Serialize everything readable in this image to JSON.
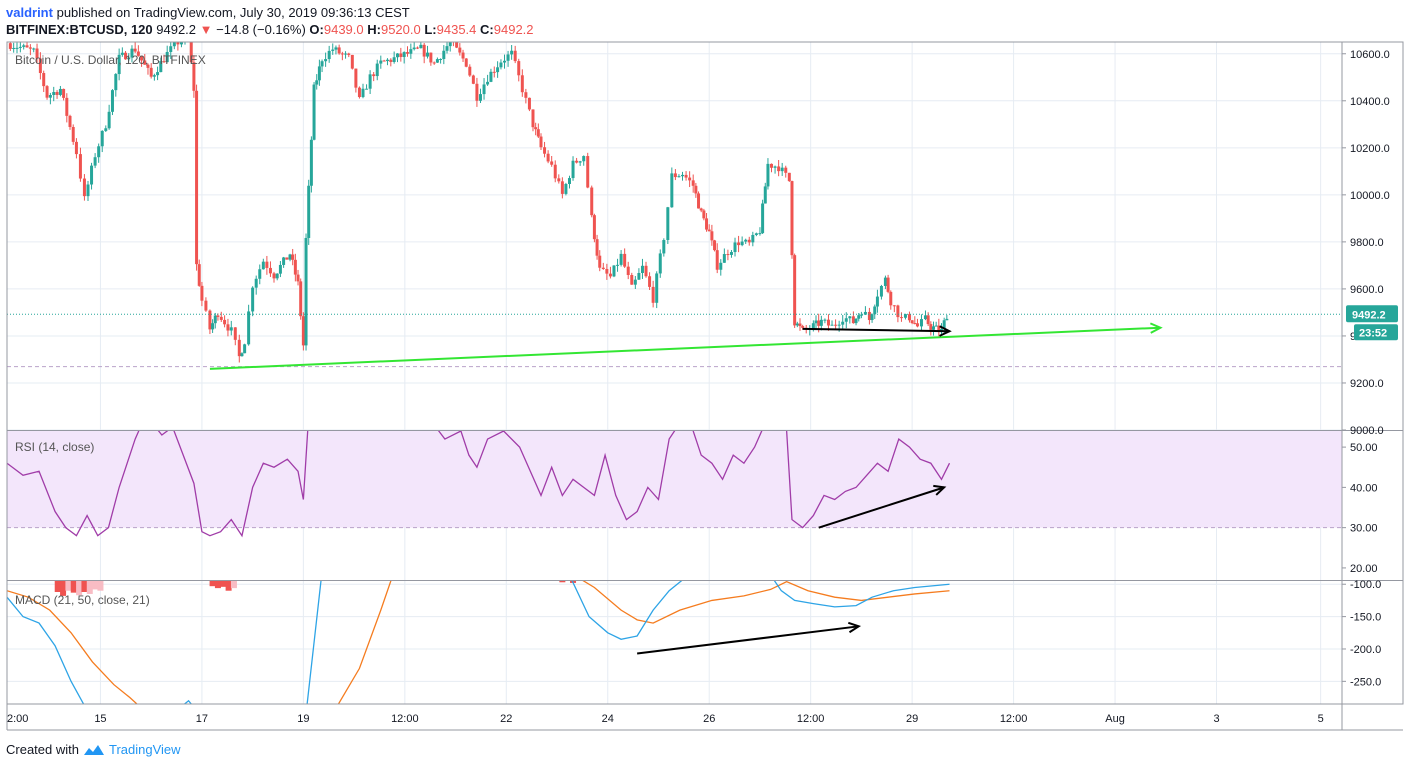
{
  "header": {
    "author": "valdrint",
    "published_text": "published on TradingView.com, July 30, 2019 09:36:13 CEST",
    "symbol": "BITFINEX:BTCUSD, 120",
    "last": "9492.2",
    "change_arrow": "▼",
    "change": "−14.8 (−0.16%)",
    "o_label": "O:",
    "o_value": "9439.0",
    "h_label": "H:",
    "h_value": "9520.0",
    "l_label": "L:",
    "l_value": "9435.4",
    "c_label": "C:",
    "c_value": "9492.2"
  },
  "footer": {
    "created_with": "Created with",
    "brand": "TradingView"
  },
  "colors": {
    "up": "#26a69a",
    "down": "#ef5350",
    "grid": "#e6ecf3",
    "trendline": "#33e633",
    "rsi": "#a03ca8",
    "rsi_band": "#f3e6fb",
    "macd": "#2ea4e6",
    "signal": "#f57c1f",
    "hist_dark": "#ef5350",
    "hist_light": "#f8bcc4",
    "price_label": "#26a69a"
  },
  "chart_data": [
    {
      "type": "candlestick",
      "title": "Bitcoin / U.S. Dollar, 120, BITFINEX",
      "ylim": [
        9000,
        10650
      ],
      "y_ticks": [
        "10600.0",
        "10400.0",
        "10200.0",
        "10000.0",
        "9800.0",
        "9600.0",
        "9400.0",
        "9200.0",
        "9000.0"
      ],
      "last_price": 9492.2,
      "last_price_label": "9492.2",
      "countdown_label": "23:52",
      "x_labels": [
        "2:00",
        "15",
        "17",
        "19",
        "12:00",
        "22",
        "24",
        "26",
        "12:00",
        "29",
        "12:00",
        "Aug",
        "3",
        "5"
      ],
      "x_label_positions": [
        0.0,
        3.5,
        7.3,
        11.1,
        14.9,
        18.7,
        22.5,
        26.3,
        30.1,
        33.9,
        37.7,
        41.5,
        45.3,
        49.2
      ],
      "segments": [
        [
          0.0,
          10645
        ],
        [
          1.0,
          10610
        ],
        [
          1.5,
          10420
        ],
        [
          2.0,
          10450
        ],
        [
          2.6,
          10180
        ],
        [
          2.9,
          9980
        ],
        [
          3.3,
          10170
        ],
        [
          3.7,
          10300
        ],
        [
          4.2,
          10580
        ],
        [
          4.8,
          10620
        ],
        [
          5.4,
          10500
        ],
        [
          6.0,
          10600
        ],
        [
          6.4,
          10650
        ],
        [
          6.8,
          10660
        ],
        [
          7.0,
          10450
        ],
        [
          7.1,
          9700
        ],
        [
          7.3,
          9550
        ],
        [
          7.6,
          9430
        ],
        [
          7.9,
          9500
        ],
        [
          8.4,
          9420
        ],
        [
          8.7,
          9310
        ],
        [
          8.9,
          9380
        ],
        [
          9.2,
          9620
        ],
        [
          9.6,
          9720
        ],
        [
          10.0,
          9660
        ],
        [
          10.6,
          9750
        ],
        [
          10.9,
          9620
        ],
        [
          11.1,
          9360
        ],
        [
          11.2,
          9810
        ],
        [
          11.5,
          10450
        ],
        [
          11.8,
          10580
        ],
        [
          12.2,
          10620
        ],
        [
          12.8,
          10580
        ],
        [
          13.2,
          10400
        ],
        [
          13.6,
          10500
        ],
        [
          14.0,
          10560
        ],
        [
          14.5,
          10580
        ],
        [
          15.0,
          10600
        ],
        [
          15.5,
          10620
        ],
        [
          16.0,
          10560
        ],
        [
          16.6,
          10650
        ],
        [
          17.2,
          10560
        ],
        [
          17.6,
          10420
        ],
        [
          18.0,
          10500
        ],
        [
          18.5,
          10570
        ],
        [
          18.9,
          10600
        ],
        [
          19.3,
          10450
        ],
        [
          19.7,
          10300
        ],
        [
          20.0,
          10200
        ],
        [
          20.4,
          10120
        ],
        [
          20.8,
          10000
        ],
        [
          21.2,
          10130
        ],
        [
          21.6,
          10170
        ],
        [
          21.9,
          9900
        ],
        [
          22.2,
          9680
        ],
        [
          22.6,
          9650
        ],
        [
          23.0,
          9740
        ],
        [
          23.4,
          9600
        ],
        [
          23.8,
          9690
        ],
        [
          24.2,
          9560
        ],
        [
          24.6,
          9820
        ],
        [
          24.9,
          10080
        ],
        [
          25.3,
          10090
        ],
        [
          25.7,
          10040
        ],
        [
          26.0,
          9920
        ],
        [
          26.3,
          9840
        ],
        [
          26.6,
          9700
        ],
        [
          27.0,
          9760
        ],
        [
          27.4,
          9800
        ],
        [
          27.8,
          9790
        ],
        [
          28.2,
          9850
        ],
        [
          28.5,
          10130
        ],
        [
          28.9,
          10120
        ],
        [
          29.3,
          10060
        ],
        [
          29.5,
          9460
        ],
        [
          29.8,
          9420
        ],
        [
          30.2,
          9440
        ],
        [
          30.5,
          9460
        ],
        [
          30.9,
          9440
        ],
        [
          31.3,
          9480
        ],
        [
          31.7,
          9460
        ],
        [
          32.0,
          9510
        ],
        [
          32.3,
          9470
        ],
        [
          32.6,
          9580
        ],
        [
          32.9,
          9640
        ],
        [
          33.1,
          9550
        ],
        [
          33.5,
          9470
        ],
        [
          33.8,
          9480
        ],
        [
          34.1,
          9440
        ],
        [
          34.4,
          9470
        ],
        [
          34.6,
          9440
        ],
        [
          34.8,
          9430
        ],
        [
          35.0,
          9420
        ],
        [
          35.2,
          9492
        ]
      ],
      "trendline_green": {
        "from": [
          7.6,
          9260
        ],
        "to": [
          43.2,
          9435
        ],
        "arrow": true
      },
      "arrow_black": {
        "from": [
          29.8,
          9430
        ],
        "to": [
          35.3,
          9420
        ]
      }
    },
    {
      "type": "line",
      "title": "RSI (14, close)",
      "ylim": [
        17,
        54
      ],
      "y_ticks": [
        "50.00",
        "40.00",
        "30.00",
        "20.00"
      ],
      "band": [
        30,
        70
      ],
      "segments": [
        [
          0.0,
          46
        ],
        [
          0.6,
          43
        ],
        [
          1.2,
          44
        ],
        [
          1.8,
          34
        ],
        [
          2.2,
          30
        ],
        [
          2.6,
          28
        ],
        [
          3.0,
          33
        ],
        [
          3.4,
          28
        ],
        [
          3.8,
          30
        ],
        [
          4.2,
          40
        ],
        [
          4.8,
          52
        ],
        [
          5.2,
          58
        ],
        [
          5.8,
          53
        ],
        [
          6.2,
          55
        ],
        [
          6.6,
          48
        ],
        [
          7.0,
          41
        ],
        [
          7.3,
          29
        ],
        [
          7.6,
          28
        ],
        [
          8.0,
          29
        ],
        [
          8.4,
          32
        ],
        [
          8.8,
          28
        ],
        [
          9.2,
          40
        ],
        [
          9.6,
          46
        ],
        [
          10.0,
          45
        ],
        [
          10.5,
          47
        ],
        [
          10.9,
          44
        ],
        [
          11.1,
          37
        ],
        [
          11.3,
          58
        ],
        [
          11.8,
          65
        ],
        [
          12.4,
          60
        ],
        [
          13.2,
          58
        ],
        [
          14.0,
          60
        ],
        [
          14.8,
          58
        ],
        [
          15.6,
          59
        ],
        [
          16.4,
          52
        ],
        [
          17.0,
          54
        ],
        [
          17.3,
          48
        ],
        [
          17.6,
          45
        ],
        [
          18.0,
          52
        ],
        [
          18.6,
          54
        ],
        [
          19.2,
          50
        ],
        [
          19.6,
          44
        ],
        [
          20.0,
          38
        ],
        [
          20.4,
          45
        ],
        [
          20.8,
          38
        ],
        [
          21.2,
          42
        ],
        [
          21.6,
          40
        ],
        [
          22.0,
          38
        ],
        [
          22.4,
          48
        ],
        [
          22.8,
          38
        ],
        [
          23.2,
          32
        ],
        [
          23.6,
          34
        ],
        [
          24.0,
          40
        ],
        [
          24.4,
          37
        ],
        [
          24.8,
          52
        ],
        [
          25.2,
          56
        ],
        [
          25.6,
          56
        ],
        [
          26.0,
          48
        ],
        [
          26.4,
          46
        ],
        [
          26.8,
          42
        ],
        [
          27.2,
          48
        ],
        [
          27.6,
          46
        ],
        [
          28.0,
          50
        ],
        [
          28.4,
          56
        ],
        [
          28.8,
          60
        ],
        [
          29.2,
          54
        ],
        [
          29.4,
          32
        ],
        [
          29.8,
          30
        ],
        [
          30.2,
          33
        ],
        [
          30.6,
          38
        ],
        [
          31.0,
          37
        ],
        [
          31.4,
          39
        ],
        [
          31.8,
          40
        ],
        [
          32.2,
          43
        ],
        [
          32.6,
          46
        ],
        [
          33.0,
          44
        ],
        [
          33.4,
          52
        ],
        [
          33.8,
          50
        ],
        [
          34.2,
          47
        ],
        [
          34.6,
          46
        ],
        [
          35.0,
          42
        ],
        [
          35.3,
          46
        ]
      ],
      "arrow_black": {
        "from": [
          30.4,
          30
        ],
        "to": [
          35.1,
          40
        ]
      }
    },
    {
      "type": "line",
      "title": "MACD (21, 50, close, 21)",
      "ylim": [
        -285,
        -95
      ],
      "y_ticks": [
        "-100.0",
        "-150.0",
        "-200.0",
        "-250.0"
      ],
      "macd_segments": [
        [
          0.0,
          -120
        ],
        [
          0.6,
          -150
        ],
        [
          1.2,
          -160
        ],
        [
          1.8,
          -195
        ],
        [
          2.4,
          -250
        ],
        [
          3.0,
          -295
        ],
        [
          6.5,
          -290
        ],
        [
          6.8,
          -280
        ],
        [
          7.2,
          -300
        ],
        [
          11.2,
          -300
        ],
        [
          11.8,
          -80
        ],
        [
          21.0,
          -80
        ],
        [
          21.8,
          -150
        ],
        [
          22.5,
          -175
        ],
        [
          23.0,
          -185
        ],
        [
          23.6,
          -180
        ],
        [
          24.2,
          -140
        ],
        [
          24.8,
          -110
        ],
        [
          25.4,
          -90
        ],
        [
          28.5,
          -80
        ],
        [
          29.0,
          -110
        ],
        [
          29.5,
          -125
        ],
        [
          30.2,
          -130
        ],
        [
          31.0,
          -135
        ],
        [
          31.8,
          -133
        ],
        [
          32.4,
          -120
        ],
        [
          33.2,
          -110
        ],
        [
          34.0,
          -105
        ],
        [
          35.3,
          -100
        ]
      ],
      "signal_segments": [
        [
          0.0,
          -110
        ],
        [
          0.8,
          -120
        ],
        [
          1.6,
          -140
        ],
        [
          2.4,
          -175
        ],
        [
          3.2,
          -220
        ],
        [
          4.0,
          -255
        ],
        [
          4.6,
          -275
        ],
        [
          5.0,
          -290
        ],
        [
          12.2,
          -300
        ],
        [
          13.2,
          -230
        ],
        [
          14.0,
          -140
        ],
        [
          14.5,
          -80
        ],
        [
          21.0,
          -80
        ],
        [
          22.0,
          -105
        ],
        [
          23.0,
          -140
        ],
        [
          23.6,
          -155
        ],
        [
          24.2,
          -160
        ],
        [
          25.2,
          -140
        ],
        [
          26.4,
          -125
        ],
        [
          27.6,
          -118
        ],
        [
          28.6,
          -108
        ],
        [
          29.2,
          -96
        ],
        [
          30.0,
          -110
        ],
        [
          31.0,
          -120
        ],
        [
          32.0,
          -125
        ],
        [
          33.0,
          -120
        ],
        [
          34.0,
          -115
        ],
        [
          35.3,
          -110
        ]
      ],
      "histogram": [
        {
          "x": 1.9,
          "v": -112,
          "shade": "dark"
        },
        {
          "x": 2.1,
          "v": -118,
          "shade": "dark"
        },
        {
          "x": 2.3,
          "v": -110,
          "shade": "light"
        },
        {
          "x": 2.5,
          "v": -113,
          "shade": "dark"
        },
        {
          "x": 2.7,
          "v": -117,
          "shade": "light"
        },
        {
          "x": 2.9,
          "v": -112,
          "shade": "dark"
        },
        {
          "x": 3.1,
          "v": -115,
          "shade": "light"
        },
        {
          "x": 3.3,
          "v": -108,
          "shade": "light"
        },
        {
          "x": 3.5,
          "v": -110,
          "shade": "light"
        },
        {
          "x": 7.7,
          "v": -103,
          "shade": "dark"
        },
        {
          "x": 7.9,
          "v": -106,
          "shade": "dark"
        },
        {
          "x": 8.1,
          "v": -104,
          "shade": "dark"
        },
        {
          "x": 8.3,
          "v": -110,
          "shade": "dark"
        },
        {
          "x": 8.5,
          "v": -106,
          "shade": "light"
        },
        {
          "x": 20.8,
          "v": -97,
          "shade": "dark"
        },
        {
          "x": 21.2,
          "v": -98,
          "shade": "dark"
        }
      ],
      "arrow_black": {
        "from": [
          23.6,
          -207
        ],
        "to": [
          31.9,
          -165
        ]
      }
    }
  ]
}
